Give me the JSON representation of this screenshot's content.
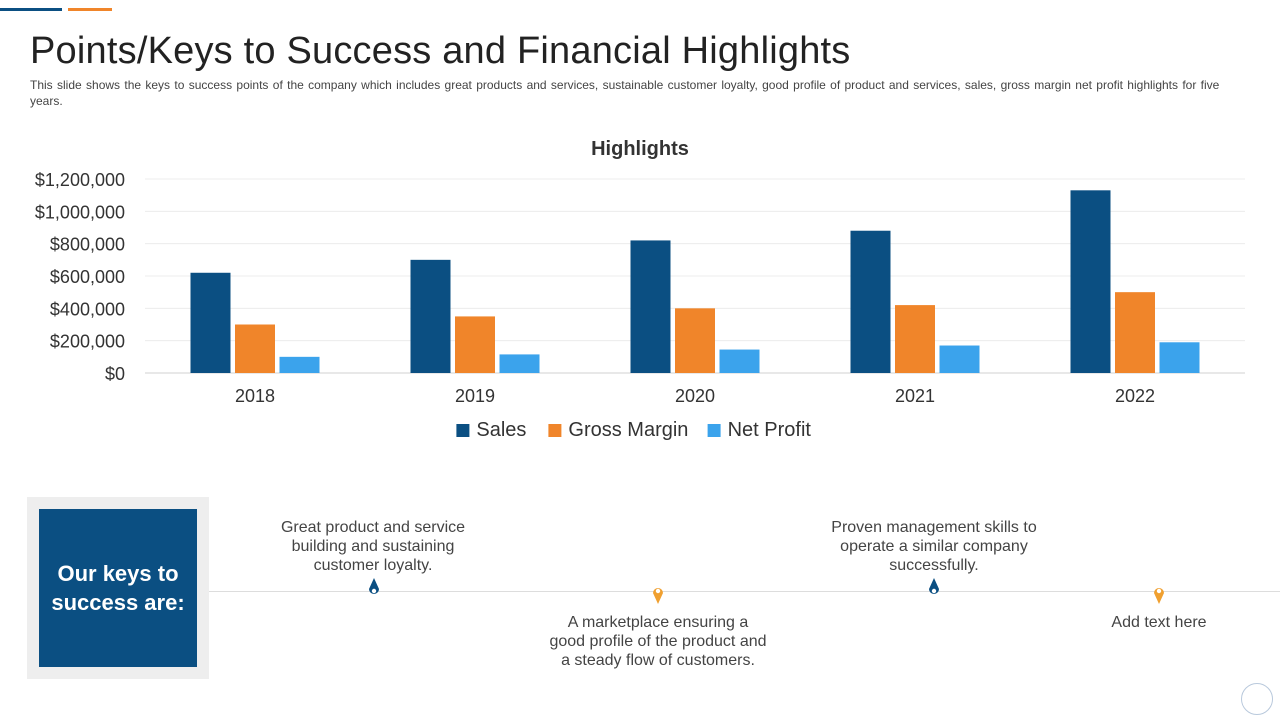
{
  "slide": {
    "title": "Points/Keys to Success and Financial Highlights",
    "subtitle": "This slide shows the keys to success points of the company which includes great products and services, sustainable customer loyalty, good profile of product and services, sales, gross margin net profit highlights for five years."
  },
  "chart_data": {
    "type": "bar",
    "title": "Highlights",
    "categories": [
      "2018",
      "2019",
      "2020",
      "2021",
      "2022"
    ],
    "series": [
      {
        "name": "Sales",
        "color": "#0b4f82",
        "values": [
          620000,
          700000,
          820000,
          880000,
          1130000
        ]
      },
      {
        "name": "Gross Margin",
        "color": "#f0852a",
        "values": [
          300000,
          350000,
          400000,
          420000,
          500000
        ]
      },
      {
        "name": "Net Profit",
        "color": "#3ba3ec",
        "values": [
          100000,
          115000,
          145000,
          170000,
          190000
        ]
      }
    ],
    "ylim": [
      0,
      1200000
    ],
    "yticks": [
      0,
      200000,
      400000,
      600000,
      800000,
      1000000,
      1200000
    ],
    "ytick_labels": [
      "$0",
      "$200,000",
      "$400,000",
      "$600,000",
      "$800,000",
      "$1,000,000",
      "$1,200,000"
    ],
    "xlabel": "",
    "ylabel": "",
    "grid": true,
    "legend": "bottom"
  },
  "keys": {
    "heading": "Our keys to success are:",
    "items": [
      {
        "text": "Great product and service building and sustaining customer loyalty.",
        "pin": "up",
        "color": "#0b4f82"
      },
      {
        "text": "A marketplace ensuring a good profile of the product and a steady flow of customers.",
        "pin": "down",
        "color": "#f0a030"
      },
      {
        "text": "Proven management skills to operate a similar company successfully.",
        "pin": "up",
        "color": "#0b4f82"
      },
      {
        "text": "Add text here",
        "pin": "down",
        "color": "#f0a030"
      }
    ]
  }
}
